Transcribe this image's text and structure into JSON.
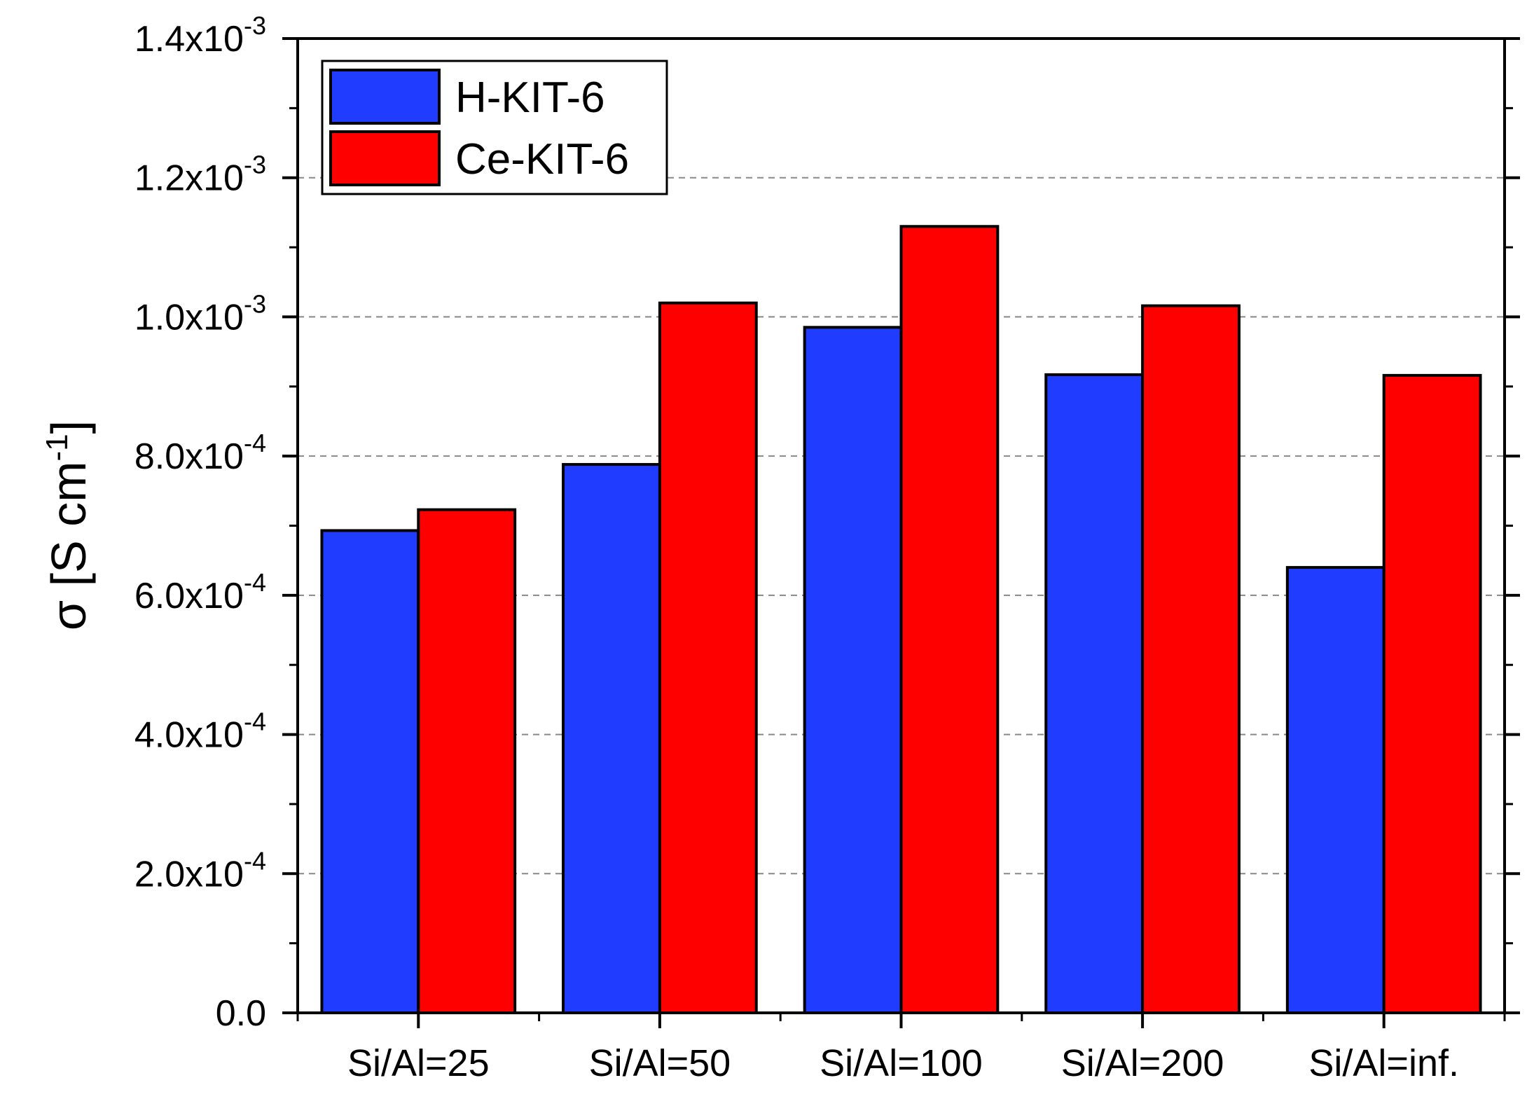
{
  "chart_data": {
    "type": "bar",
    "title": "",
    "xlabel": "",
    "ylabel": "σ [S cm-1]",
    "ylabel_parts": {
      "symbol": "σ",
      "unit": "S cm",
      "exponent": "-1"
    },
    "ylim": [
      0,
      0.0014
    ],
    "grid": "horizontal dashed",
    "legend_position": "top-left",
    "categories": [
      "Si/Al=25",
      "Si/Al=50",
      "Si/Al=100",
      "Si/Al=200",
      "Si/Al=inf."
    ],
    "series": [
      {
        "name": "H-KIT-6",
        "color": "#203DFF",
        "values": [
          0.000693,
          0.000788,
          0.000985,
          0.000917,
          0.00064
        ]
      },
      {
        "name": "Ce-KIT-6",
        "color": "#FF0000",
        "values": [
          0.000723,
          0.00102,
          0.00113,
          0.001016,
          0.000916
        ]
      }
    ],
    "y_ticks": [
      {
        "value": 0,
        "mantissa": "0.0",
        "exponent": ""
      },
      {
        "value": 0.0002,
        "mantissa": "2.0x10",
        "exponent": "-4"
      },
      {
        "value": 0.0004,
        "mantissa": "4.0x10",
        "exponent": "-4"
      },
      {
        "value": 0.0006,
        "mantissa": "6.0x10",
        "exponent": "-4"
      },
      {
        "value": 0.0008,
        "mantissa": "8.0x10",
        "exponent": "-4"
      },
      {
        "value": 0.001,
        "mantissa": "1.0x10",
        "exponent": "-3"
      },
      {
        "value": 0.0012,
        "mantissa": "1.2x10",
        "exponent": "-3"
      },
      {
        "value": 0.0014,
        "mantissa": "1.4x10",
        "exponent": "-3"
      }
    ]
  }
}
